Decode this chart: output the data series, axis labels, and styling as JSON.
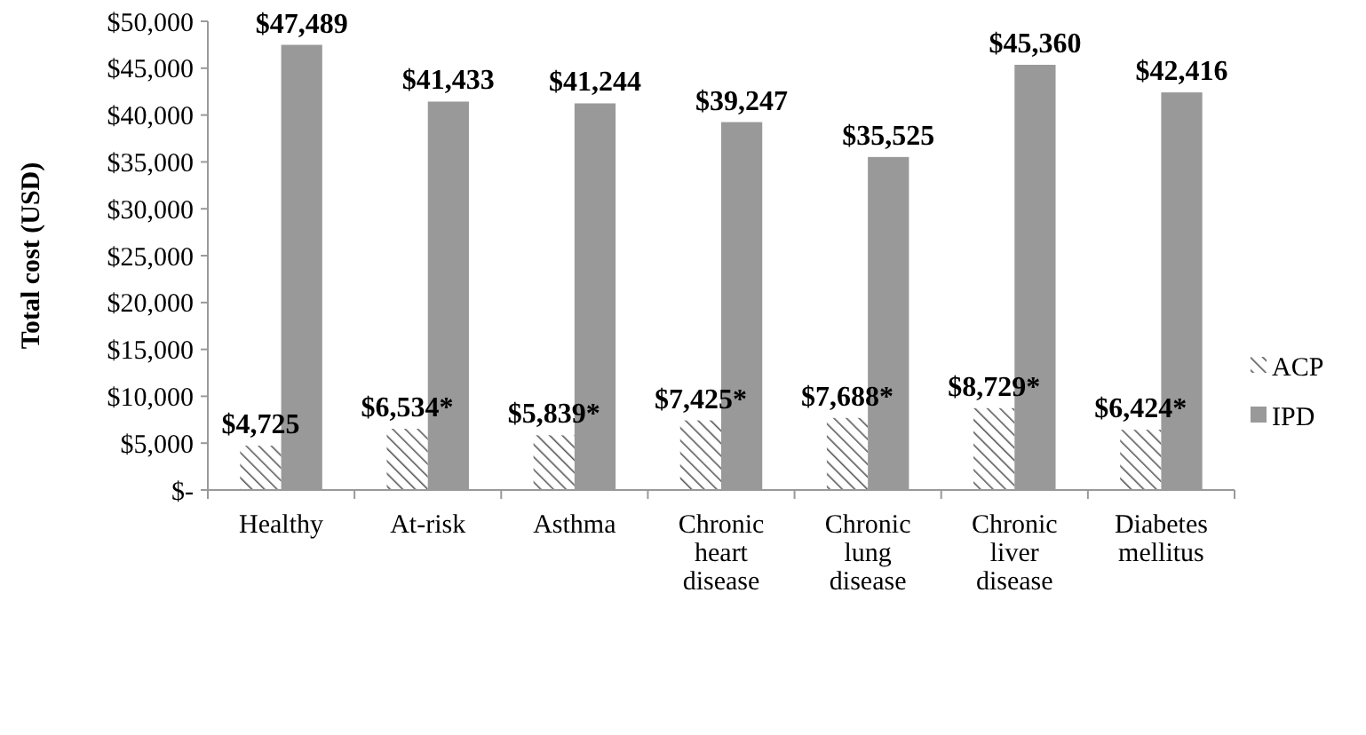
{
  "chart_data": {
    "type": "bar",
    "ylabel": "Total cost (USD)",
    "categories": [
      "Healthy",
      "At-risk",
      "Asthma",
      "Chronic heart disease",
      "Chronic lung disease",
      "Chronic liver disease",
      "Diabetes mellitus"
    ],
    "series": [
      {
        "name": "ACP",
        "color": "#595959",
        "values": [
          4725,
          6534,
          5839,
          7425,
          7688,
          8729,
          6424
        ],
        "value_labels": [
          "$4,725",
          "$6,534*",
          "$5,839*",
          "$7,425*",
          "$7,688*",
          "$8,729*",
          "$6,424*"
        ]
      },
      {
        "name": "IPD",
        "color": "#999999",
        "values": [
          47489,
          41433,
          41244,
          39247,
          35525,
          45360,
          42416
        ],
        "value_labels": [
          "$47,489",
          "$41,433",
          "$41,244",
          "$39,247",
          "$35,525",
          "$45,360",
          "$42,416"
        ]
      }
    ],
    "ylim": [
      0,
      50000
    ],
    "yticks": [
      {
        "value": 0,
        "label": "$-"
      },
      {
        "value": 5000,
        "label": "$5,000"
      },
      {
        "value": 10000,
        "label": "$10,000"
      },
      {
        "value": 15000,
        "label": "$15,000"
      },
      {
        "value": 20000,
        "label": "$20,000"
      },
      {
        "value": 25000,
        "label": "$25,000"
      },
      {
        "value": 30000,
        "label": "$30,000"
      },
      {
        "value": 35000,
        "label": "$35,000"
      },
      {
        "value": 40000,
        "label": "$40,000"
      },
      {
        "value": 45000,
        "label": "$45,000"
      },
      {
        "value": 50000,
        "label": "$50,000"
      }
    ],
    "grid": false,
    "legend": "right"
  }
}
